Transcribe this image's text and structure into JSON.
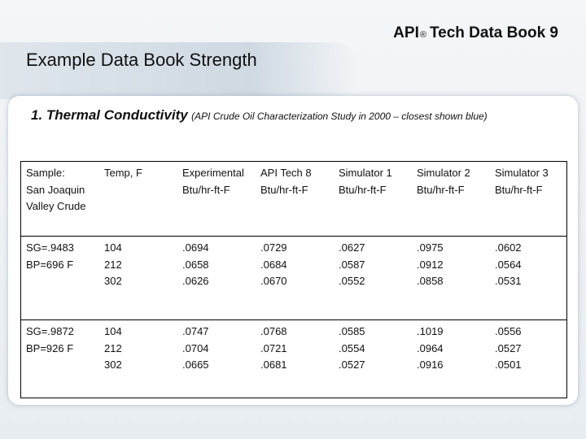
{
  "header": {
    "title": {
      "prefix": "API",
      "mark": "®",
      "rest": "Tech Data Book 9"
    },
    "subtitle": "Example Data Book Strength"
  },
  "section": {
    "heading": "1. Thermal Conductivity",
    "note": "(API Crude Oil Characterization Study in 2000 – closest shown blue)"
  },
  "table": {
    "header": [
      [
        "Sample:",
        "San Joaquin",
        "Valley Crude"
      ],
      [
        "Temp, F"
      ],
      [
        "Experimental",
        "Btu/hr-ft-F"
      ],
      [
        "API Tech 8",
        "Btu/hr-ft-F"
      ],
      [
        "Simulator 1",
        "Btu/hr-ft-F"
      ],
      [
        "Simulator 2",
        "Btu/hr-ft-F"
      ],
      [
        "Simulator 3",
        "Btu/hr-ft-F"
      ]
    ],
    "rows": [
      [
        [
          "SG=.9483",
          "BP=696 F"
        ],
        [
          "104",
          "212",
          "302"
        ],
        [
          ".0694",
          ".0658",
          ".0626"
        ],
        [
          ".0729",
          ".0684",
          ".0670"
        ],
        [
          ".0627",
          ".0587",
          ".0552"
        ],
        [
          ".0975",
          ".0912",
          ".0858"
        ],
        [
          ".0602",
          ".0564",
          ".0531"
        ]
      ],
      [
        [
          "SG=.9872",
          "BP=926 F"
        ],
        [
          "104",
          "212",
          "302"
        ],
        [
          ".0747",
          ".0704",
          ".0665"
        ],
        [
          ".0768",
          ".0721",
          ".0681"
        ],
        [
          ".0585",
          ".0554",
          ".0527"
        ],
        [
          ".1019",
          ".0964",
          ".0916"
        ],
        [
          ".0556",
          ".0527",
          ".0501"
        ]
      ]
    ]
  }
}
